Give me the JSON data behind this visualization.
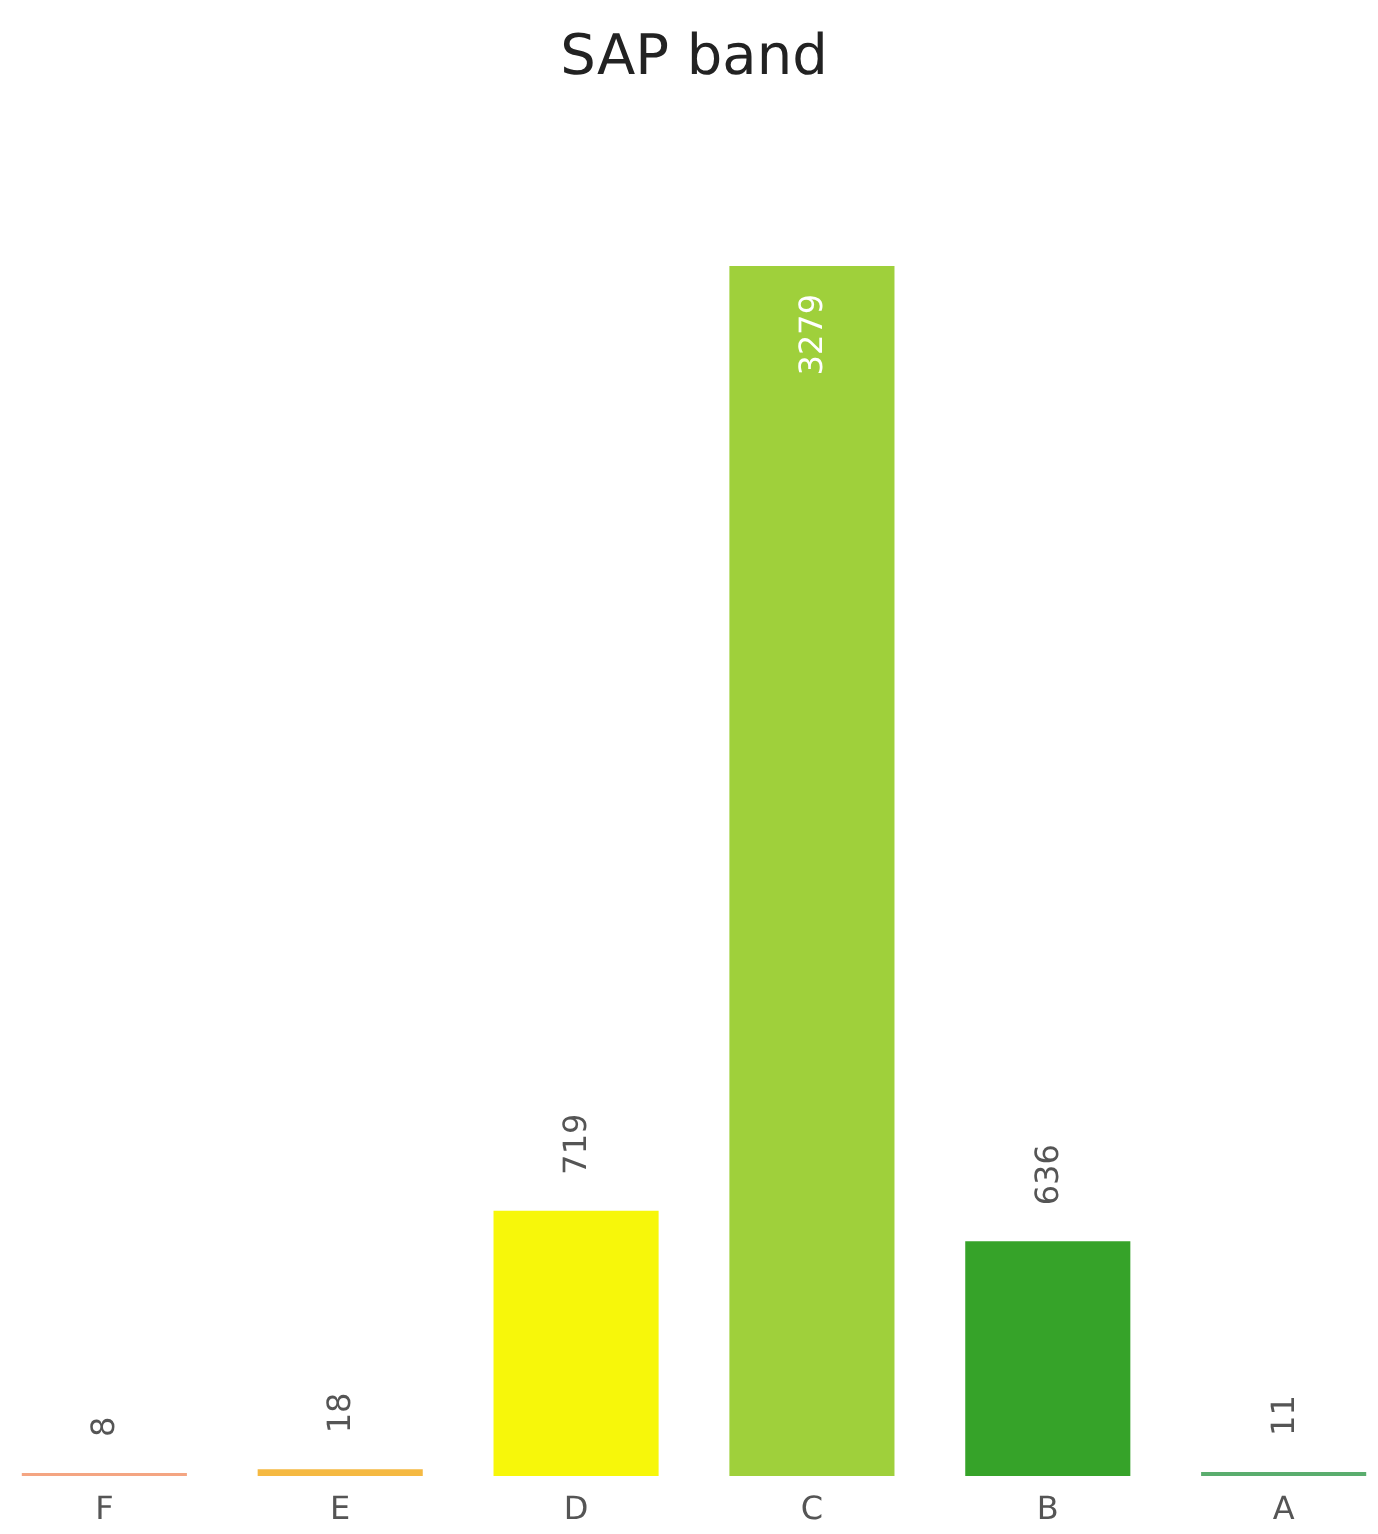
{
  "chart_data": {
    "type": "bar",
    "title": "SAP band",
    "categories": [
      "F",
      "E",
      "D",
      "C",
      "B",
      "A"
    ],
    "values": [
      8,
      18,
      719,
      3279,
      636,
      11
    ],
    "colors": [
      "#f4a582",
      "#f5b942",
      "#f7f70a",
      "#9fd03b",
      "#36a329",
      "#5aad6e"
    ],
    "data_labels": true,
    "grid": false,
    "tick_labels": "x"
  }
}
